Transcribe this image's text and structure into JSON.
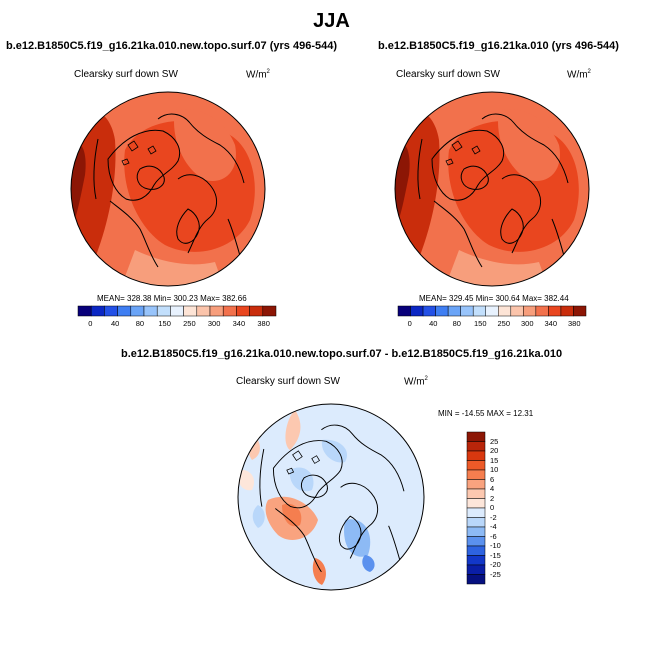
{
  "figure_title": "JJA",
  "units_prefix": "W/m",
  "units_sup": "2",
  "chart_data": [
    {
      "type": "polar-contour-map",
      "title": "b.e12.B1850C5.f19_g16.21ka.010.new.topo.surf.07 (yrs 496-544)",
      "variable": "Clearsky surf down SW",
      "units": "W/m2",
      "stats": "MEAN= 328.38  Min= 300.23  Max= 382.66",
      "mean": 328.38,
      "min": 300.23,
      "max": 382.66,
      "colorbar": {
        "orientation": "horizontal",
        "levels": [
          "0",
          "40",
          "80",
          "150",
          "250",
          "300",
          "340",
          "380"
        ],
        "colors": [
          "#08007a",
          "#0b27c4",
          "#2350e6",
          "#3f7ef2",
          "#6aa4f7",
          "#98c4fb",
          "#c2dffc",
          "#e8f2fe",
          "#fde4d6",
          "#fbc4ab",
          "#f79e7c",
          "#f2714c",
          "#e9461f",
          "#c92d0c",
          "#8c1605"
        ]
      }
    },
    {
      "type": "polar-contour-map",
      "title": "b.e12.B1850C5.f19_g16.21ka.010 (yrs 496-544)",
      "variable": "Clearsky surf down SW",
      "units": "W/m2",
      "stats": "MEAN= 329.45  Min= 300.64  Max= 382.44",
      "mean": 329.45,
      "min": 300.64,
      "max": 382.44,
      "colorbar": {
        "orientation": "horizontal",
        "levels": [
          "0",
          "40",
          "80",
          "150",
          "250",
          "300",
          "340",
          "380"
        ],
        "colors": [
          "#08007a",
          "#0b27c4",
          "#2350e6",
          "#3f7ef2",
          "#6aa4f7",
          "#98c4fb",
          "#c2dffc",
          "#e8f2fe",
          "#fde4d6",
          "#fbc4ab",
          "#f79e7c",
          "#f2714c",
          "#e9461f",
          "#c92d0c",
          "#8c1605"
        ]
      }
    },
    {
      "type": "polar-contour-map",
      "title": "b.e12.B1850C5.f19_g16.21ka.010.new.topo.surf.07 - b.e12.B1850C5.f19_g16.21ka.010",
      "variable": "Clearsky surf down SW",
      "units": "W/m2",
      "stats": "MIN = -14.55 MAX =  12.31",
      "min": -14.55,
      "max": 12.31,
      "colorbar": {
        "orientation": "vertical",
        "levels": [
          "25",
          "20",
          "15",
          "10",
          "6",
          "4",
          "2",
          "0",
          "-2",
          "-4",
          "-6",
          "-10",
          "-15",
          "-20",
          "-25"
        ],
        "colors": [
          "#8c1605",
          "#b8250a",
          "#d9380f",
          "#ed5a28",
          "#f57e4f",
          "#f9a37f",
          "#fcc8b0",
          "#fde6da",
          "#dcebfd",
          "#b9d7fa",
          "#8dbaf5",
          "#5b91ee",
          "#2e63e0",
          "#1237c8",
          "#0a1ea6",
          "#061080"
        ]
      }
    }
  ]
}
